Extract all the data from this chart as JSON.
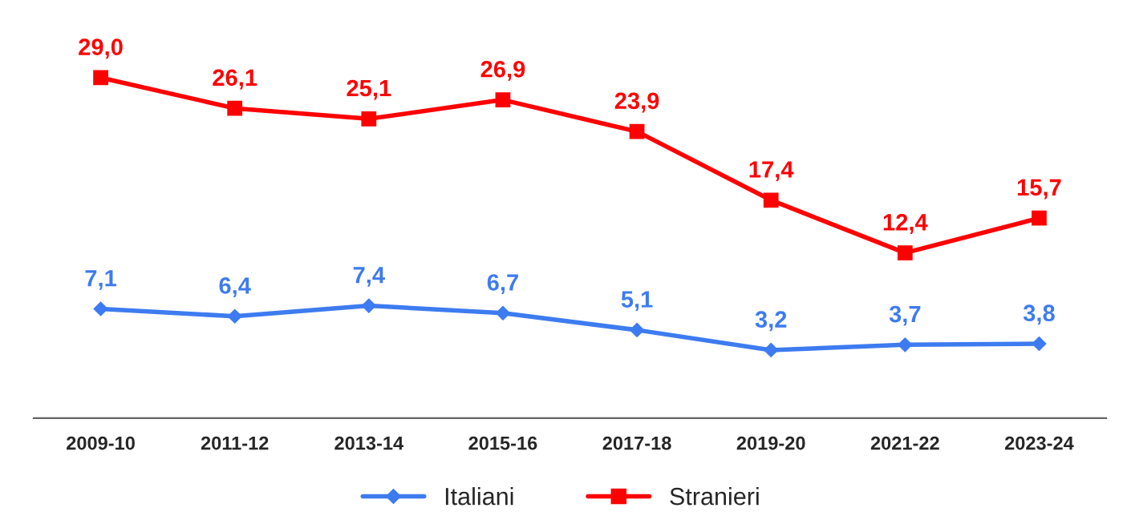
{
  "chart_data": {
    "type": "line",
    "categories": [
      "2009-10",
      "2011-12",
      "2013-14",
      "2015-16",
      "2017-18",
      "2019-20",
      "2021-22",
      "2023-24"
    ],
    "series": [
      {
        "name": "Italiani",
        "color": "#3d7bf0",
        "marker": "diamond",
        "values": [
          7.1,
          6.4,
          7.4,
          6.7,
          5.1,
          3.2,
          3.7,
          3.8
        ],
        "value_labels": [
          "7,1",
          "6,4",
          "7,4",
          "6,7",
          "5,1",
          "3,2",
          "3,7",
          "3,8"
        ]
      },
      {
        "name": "Stranieri",
        "color": "#ff0000",
        "marker": "square",
        "values": [
          29.0,
          26.1,
          25.1,
          26.9,
          23.9,
          17.4,
          12.4,
          15.7
        ],
        "value_labels": [
          "29,0",
          "26,1",
          "25,1",
          "26,9",
          "23,9",
          "17,4",
          "12,4",
          "15,7"
        ]
      }
    ],
    "tick_labels": "x",
    "grid": false,
    "legend": "bottom",
    "line_style": "solid"
  }
}
